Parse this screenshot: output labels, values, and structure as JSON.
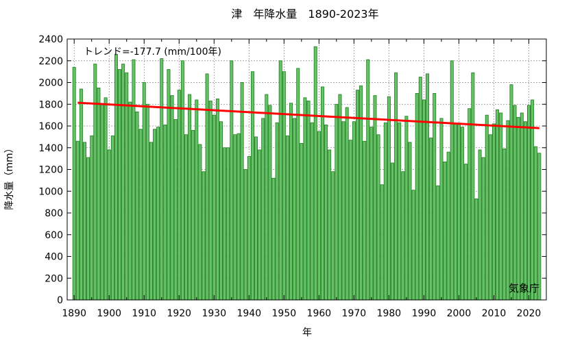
{
  "chart_data": {
    "type": "bar",
    "title": "津　年降水量　1890-2023年",
    "xlabel": "年",
    "ylabel": "降水量（mm）",
    "xlim": [
      1888,
      2025
    ],
    "ylim": [
      0,
      2400
    ],
    "x_ticks": [
      1890,
      1900,
      1910,
      1920,
      1930,
      1940,
      1950,
      1960,
      1970,
      1980,
      1990,
      2000,
      2010,
      2020
    ],
    "y_ticks": [
      0,
      200,
      400,
      600,
      800,
      1000,
      1200,
      1400,
      1600,
      1800,
      2000,
      2200,
      2400
    ],
    "grid": true,
    "bar_color": "#66c266",
    "bar_edge_color": "#1f7a1f",
    "trend_color": "#ff0000",
    "annotation": "トレンド=-177.7 (mm/100年)",
    "credit": "気象庁",
    "x_start": 1890,
    "values": [
      2140,
      1460,
      1940,
      1450,
      1310,
      1510,
      2170,
      1950,
      1800,
      1860,
      1380,
      1510,
      2260,
      2120,
      2170,
      2090,
      1820,
      2210,
      1730,
      1570,
      2000,
      1800,
      1450,
      1570,
      1590,
      2220,
      1610,
      2120,
      1880,
      1660,
      1930,
      2200,
      1520,
      1890,
      1560,
      1840,
      1430,
      1180,
      2080,
      1830,
      1700,
      1850,
      1640,
      1400,
      1400,
      2200,
      1520,
      1530,
      2000,
      1200,
      1320,
      2100,
      1500,
      1380,
      1670,
      1890,
      1790,
      1120,
      1630,
      2200,
      2100,
      1510,
      1810,
      1670,
      2130,
      1440,
      1860,
      1830,
      1630,
      2330,
      1550,
      1960,
      1610,
      1380,
      1180,
      1800,
      1890,
      1640,
      1770,
      1470,
      1640,
      1930,
      1970,
      1460,
      2210,
      1590,
      1880,
      1520,
      1060,
      1630,
      1870,
      1260,
      2090,
      1630,
      1180,
      1690,
      1450,
      1010,
      1900,
      2050,
      1840,
      2080,
      1490,
      1900,
      1050,
      1670,
      1270,
      1360,
      2200,
      1620,
      1620,
      1590,
      1250,
      1760,
      2090,
      930,
      1380,
      1310,
      1700,
      1520,
      1620,
      1750,
      1720,
      1390,
      1650,
      1980,
      1790,
      1680,
      1720,
      1640,
      1790,
      1840,
      1410,
      1350
    ],
    "trend": {
      "x": [
        1891,
        2023
      ],
      "y": [
        1814,
        1580
      ]
    }
  }
}
